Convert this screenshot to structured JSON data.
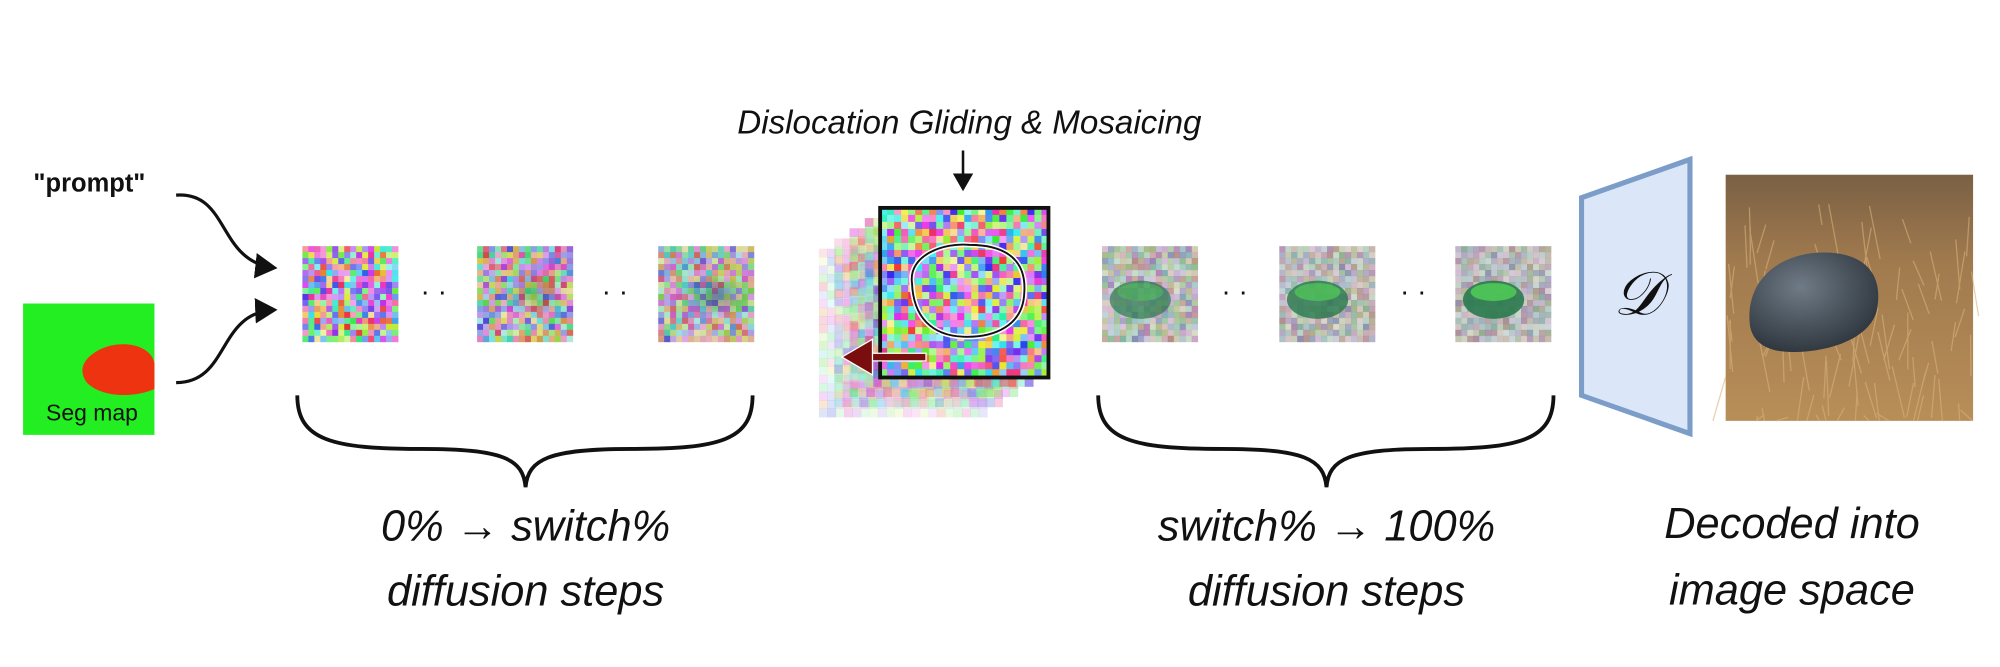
{
  "inputs": {
    "prompt": "\"prompt\"",
    "seg_map": "Seg map"
  },
  "operation": {
    "label": "Dislocation Gliding & Mosaicing"
  },
  "stages": [
    {
      "line1": "0% → switch%",
      "line2": "diffusion steps"
    },
    {
      "line1": "switch% → 100%",
      "line2": "diffusion steps"
    }
  ],
  "decoder": {
    "symbol": "𝒟"
  },
  "output": {
    "line1": "Decoded into",
    "line2": "image space"
  }
}
